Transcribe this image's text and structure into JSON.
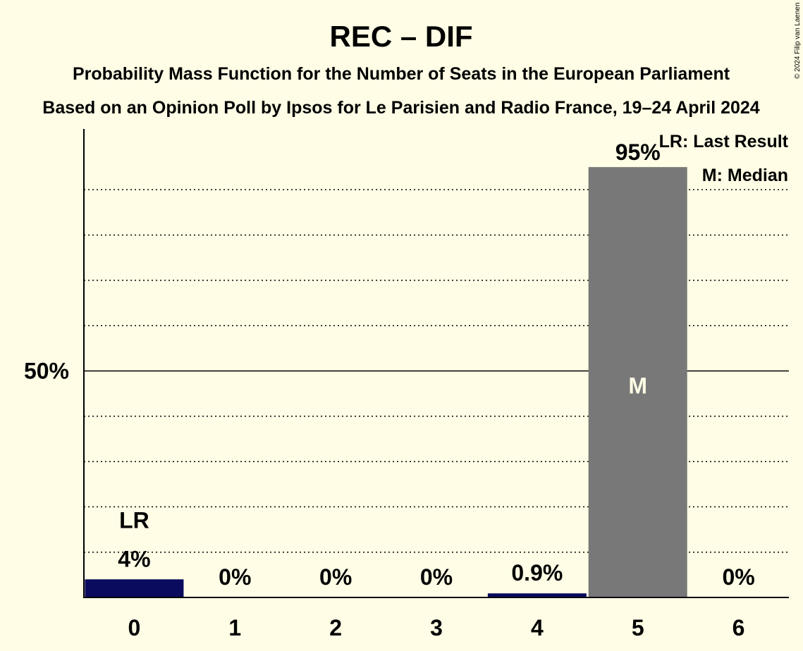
{
  "chart_data": {
    "type": "bar",
    "title": "REC – DIF",
    "subtitle": "Probability Mass Function for the Number of Seats in the European Parliament",
    "subtitle2": "Based on an Opinion Poll by Ipsos for Le Parisien and Radio France, 19–24 April 2024",
    "copyright": "© 2024 Filip van Laenen",
    "categories": [
      "0",
      "1",
      "2",
      "3",
      "4",
      "5",
      "6"
    ],
    "values": [
      4,
      0,
      0,
      0,
      0.9,
      95,
      0
    ],
    "value_labels": [
      "4%",
      "0%",
      "0%",
      "0%",
      "0.9%",
      "95%",
      "0%"
    ],
    "ylim": [
      0,
      100
    ],
    "ytick_label": "50%",
    "ytick_value": 50,
    "grid_step": 10,
    "last_result_index": 0,
    "last_result_marker": "LR",
    "median_index": 5,
    "median_marker": "M",
    "legend": {
      "position": "top-right",
      "last_result": "LR: Last Result",
      "median": "M: Median"
    },
    "colors": {
      "background": "#fffde5",
      "bar_party": "#0a0a5e",
      "bar_median": "#787878",
      "axis": "#000000"
    }
  }
}
